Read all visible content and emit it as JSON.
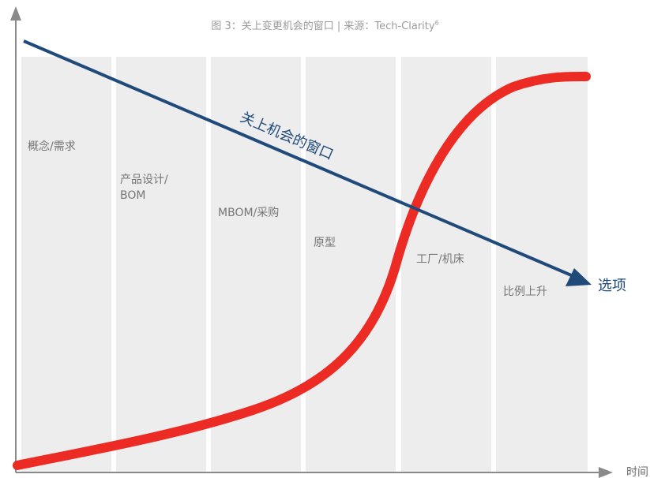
{
  "caption": {
    "text": "图 3：关上变更机会的窗口 | 来源：Tech-Clarity",
    "superscript": "6"
  },
  "stages": [
    {
      "line1": "概念/需求",
      "line2": ""
    },
    {
      "line1": "产品设计/",
      "line2": "BOM"
    },
    {
      "line1": "MBOM/采购",
      "line2": ""
    },
    {
      "line1": "原型",
      "line2": ""
    },
    {
      "line1": "工厂/机床",
      "line2": ""
    },
    {
      "line1": "比例上升",
      "line2": ""
    }
  ],
  "lines": {
    "window_label": "关上机会的窗口",
    "options_label": "选项"
  },
  "axes": {
    "x_label": "时间"
  },
  "colors": {
    "blue_line": "#1f4a79",
    "red_curve": "#ec2b25",
    "band": "#ededed",
    "axis": "#8a8a8a"
  }
}
